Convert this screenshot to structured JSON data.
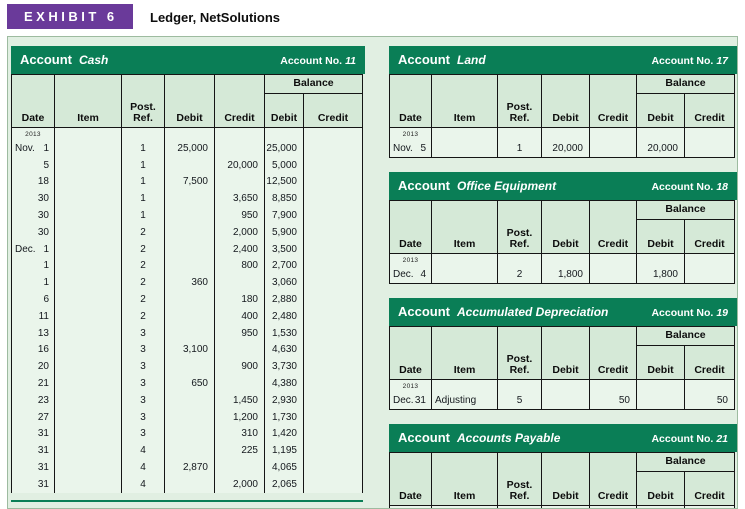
{
  "exhibit": {
    "badge": "EXHIBIT 6",
    "title": "Ledger, NetSolutions"
  },
  "labels": {
    "account_word": "Account",
    "account_no_word": "Account No.",
    "balance": "Balance",
    "columns": [
      "Date",
      "Item",
      "Post. Ref.",
      "Debit",
      "Credit"
    ],
    "balance_columns": [
      "Debit",
      "Credit"
    ],
    "year": "2013"
  },
  "colors": {
    "header_green": "#0A7E56",
    "column_band_green": "#D5E9D7",
    "cell_green": "#EAF5EB",
    "panel_green": "#E1EFE2",
    "badge_purple": "#6A3A9A"
  },
  "accounts": [
    {
      "id": "cash",
      "name": "Cash",
      "number": "11",
      "column": "left",
      "show_year": true,
      "closed": false,
      "bottom_rule": true,
      "rows": [
        {
          "month": "Nov.",
          "day": "1",
          "item": "",
          "ref": "1",
          "debit": "25,000",
          "credit": "",
          "balance_debit": "25,000",
          "balance_credit": ""
        },
        {
          "month": "",
          "day": "5",
          "item": "",
          "ref": "1",
          "debit": "",
          "credit": "20,000",
          "balance_debit": "5,000",
          "balance_credit": ""
        },
        {
          "month": "",
          "day": "18",
          "item": "",
          "ref": "1",
          "debit": "7,500",
          "credit": "",
          "balance_debit": "12,500",
          "balance_credit": ""
        },
        {
          "month": "",
          "day": "30",
          "item": "",
          "ref": "1",
          "debit": "",
          "credit": "3,650",
          "balance_debit": "8,850",
          "balance_credit": ""
        },
        {
          "month": "",
          "day": "30",
          "item": "",
          "ref": "1",
          "debit": "",
          "credit": "950",
          "balance_debit": "7,900",
          "balance_credit": ""
        },
        {
          "month": "",
          "day": "30",
          "item": "",
          "ref": "2",
          "debit": "",
          "credit": "2,000",
          "balance_debit": "5,900",
          "balance_credit": ""
        },
        {
          "month": "Dec.",
          "day": "1",
          "item": "",
          "ref": "2",
          "debit": "",
          "credit": "2,400",
          "balance_debit": "3,500",
          "balance_credit": ""
        },
        {
          "month": "",
          "day": "1",
          "item": "",
          "ref": "2",
          "debit": "",
          "credit": "800",
          "balance_debit": "2,700",
          "balance_credit": ""
        },
        {
          "month": "",
          "day": "1",
          "item": "",
          "ref": "2",
          "debit": "360",
          "credit": "",
          "balance_debit": "3,060",
          "balance_credit": ""
        },
        {
          "month": "",
          "day": "6",
          "item": "",
          "ref": "2",
          "debit": "",
          "credit": "180",
          "balance_debit": "2,880",
          "balance_credit": ""
        },
        {
          "month": "",
          "day": "11",
          "item": "",
          "ref": "2",
          "debit": "",
          "credit": "400",
          "balance_debit": "2,480",
          "balance_credit": ""
        },
        {
          "month": "",
          "day": "13",
          "item": "",
          "ref": "3",
          "debit": "",
          "credit": "950",
          "balance_debit": "1,530",
          "balance_credit": ""
        },
        {
          "month": "",
          "day": "16",
          "item": "",
          "ref": "3",
          "debit": "3,100",
          "credit": "",
          "balance_debit": "4,630",
          "balance_credit": ""
        },
        {
          "month": "",
          "day": "20",
          "item": "",
          "ref": "3",
          "debit": "",
          "credit": "900",
          "balance_debit": "3,730",
          "balance_credit": ""
        },
        {
          "month": "",
          "day": "21",
          "item": "",
          "ref": "3",
          "debit": "650",
          "credit": "",
          "balance_debit": "4,380",
          "balance_credit": ""
        },
        {
          "month": "",
          "day": "23",
          "item": "",
          "ref": "3",
          "debit": "",
          "credit": "1,450",
          "balance_debit": "2,930",
          "balance_credit": ""
        },
        {
          "month": "",
          "day": "27",
          "item": "",
          "ref": "3",
          "debit": "",
          "credit": "1,200",
          "balance_debit": "1,730",
          "balance_credit": ""
        },
        {
          "month": "",
          "day": "31",
          "item": "",
          "ref": "3",
          "debit": "",
          "credit": "310",
          "balance_debit": "1,420",
          "balance_credit": ""
        },
        {
          "month": "",
          "day": "31",
          "item": "",
          "ref": "4",
          "debit": "",
          "credit": "225",
          "balance_debit": "1,195",
          "balance_credit": ""
        },
        {
          "month": "",
          "day": "31",
          "item": "",
          "ref": "4",
          "debit": "2,870",
          "credit": "",
          "balance_debit": "4,065",
          "balance_credit": ""
        },
        {
          "month": "",
          "day": "31",
          "item": "",
          "ref": "4",
          "debit": "",
          "credit": "2,000",
          "balance_debit": "2,065",
          "balance_credit": ""
        }
      ]
    },
    {
      "id": "land",
      "name": "Land",
      "number": "17",
      "column": "right",
      "show_year": true,
      "closed": true,
      "bottom_rule": false,
      "rows": [
        {
          "month": "Nov.",
          "day": "5",
          "item": "",
          "ref": "1",
          "debit": "20,000",
          "credit": "",
          "balance_debit": "20,000",
          "balance_credit": ""
        }
      ]
    },
    {
      "id": "office-equipment",
      "name": "Office Equipment",
      "number": "18",
      "column": "right",
      "show_year": true,
      "closed": true,
      "bottom_rule": false,
      "rows": [
        {
          "month": "Dec.",
          "day": "4",
          "item": "",
          "ref": "2",
          "debit": "1,800",
          "credit": "",
          "balance_debit": "1,800",
          "balance_credit": ""
        }
      ]
    },
    {
      "id": "accumulated-depreciation",
      "name": "Accumulated Depreciation",
      "number": "19",
      "column": "right",
      "show_year": true,
      "closed": true,
      "bottom_rule": false,
      "rows": [
        {
          "month": "Dec.",
          "day": "31",
          "item": "Adjusting",
          "ref": "5",
          "debit": "",
          "credit": "50",
          "balance_debit": "",
          "balance_credit": "50"
        }
      ]
    },
    {
      "id": "accounts-payable",
      "name": "Accounts Payable",
      "number": "21",
      "column": "right",
      "show_year": false,
      "closed": false,
      "bottom_rule": false,
      "rows": []
    }
  ]
}
